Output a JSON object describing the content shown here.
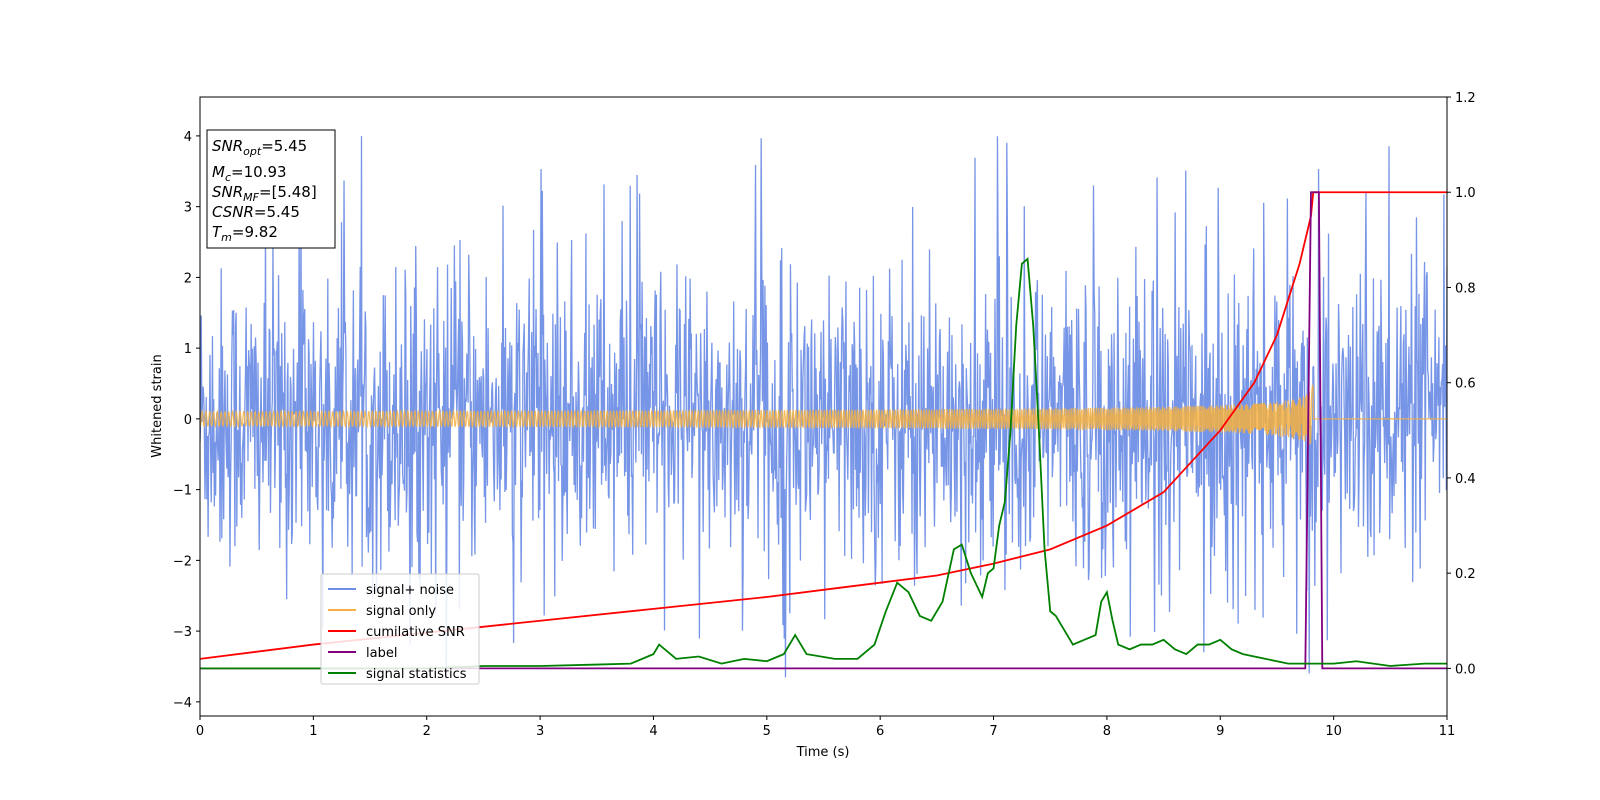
{
  "chart_data": {
    "type": "line",
    "title": "",
    "xlabel": "Time (s)",
    "ylabel": "Whitened strain",
    "ylabel_right": "",
    "xlim": [
      0,
      11
    ],
    "ylim": [
      -4.2,
      4.55
    ],
    "ylim_right": [
      -0.1,
      1.2
    ],
    "x_ticks": [
      "0",
      "1",
      "2",
      "3",
      "4",
      "5",
      "6",
      "7",
      "8",
      "9",
      "10",
      "11"
    ],
    "y_ticks": [
      "−4",
      "−3",
      "−2",
      "−1",
      "0",
      "1",
      "2",
      "3",
      "4"
    ],
    "y_ticks_values": [
      -4,
      -3,
      -2,
      -1,
      0,
      1,
      2,
      3,
      4
    ],
    "y_right_ticks": [
      "0.0",
      "0.2",
      "0.4",
      "0.6",
      "0.8",
      "1.0",
      "1.2"
    ],
    "y_right_ticks_values": [
      0,
      0.2,
      0.4,
      0.6,
      0.8,
      1.0,
      1.2
    ],
    "grid": false,
    "legend_position": "lower-left",
    "annotation_box": {
      "lines": [
        {
          "main": "SNR",
          "sub": "opt",
          "value": "=5.45"
        },
        {
          "main": "M",
          "sub": "c",
          "value": "=10.93"
        },
        {
          "main": "SNR",
          "sub": "MF",
          "value": "=[5.48]"
        },
        {
          "main": "CSNR",
          "sub": "",
          "value": "=5.45"
        },
        {
          "main": "T",
          "sub": "m",
          "value": "=9.82"
        }
      ]
    },
    "series": [
      {
        "name": "signal+ noise",
        "color": "#6f8fe6",
        "axis": "left",
        "kind": "noise",
        "noise_sigma": 1.05,
        "max_peak": 4.18,
        "min_trough": -3.7,
        "sample_count": 2000
      },
      {
        "name": "signal only",
        "color": "#f5b041",
        "axis": "left",
        "kind": "chirp",
        "merger_time": 9.82,
        "peak_amplitude": 0.55
      },
      {
        "name": "cumilative SNR",
        "color": "#ff0000",
        "axis": "right",
        "x": [
          0,
          1,
          2,
          3,
          4,
          5,
          5.5,
          6,
          6.5,
          7,
          7.5,
          8,
          8.5,
          9,
          9.3,
          9.5,
          9.7,
          9.8,
          9.82,
          11
        ],
        "values": [
          0.02,
          0.05,
          0.075,
          0.1,
          0.125,
          0.15,
          0.165,
          0.18,
          0.195,
          0.22,
          0.25,
          0.3,
          0.37,
          0.5,
          0.6,
          0.7,
          0.85,
          0.95,
          1.0,
          1.0
        ]
      },
      {
        "name": "label",
        "color": "#800080",
        "axis": "right",
        "x": [
          0,
          9.75,
          9.8,
          9.87,
          9.9,
          11
        ],
        "values": [
          0,
          0,
          1.0,
          1.0,
          0,
          0
        ]
      },
      {
        "name": "signal statistics",
        "color": "#008000",
        "axis": "right",
        "x": [
          0,
          0.5,
          1.0,
          1.5,
          2.0,
          2.5,
          3.0,
          3.5,
          3.8,
          4.0,
          4.05,
          4.2,
          4.4,
          4.6,
          4.8,
          5.0,
          5.15,
          5.25,
          5.35,
          5.6,
          5.8,
          5.95,
          6.05,
          6.15,
          6.25,
          6.35,
          6.45,
          6.55,
          6.65,
          6.72,
          6.8,
          6.9,
          6.95,
          7.0,
          7.05,
          7.1,
          7.15,
          7.2,
          7.25,
          7.3,
          7.35,
          7.4,
          7.45,
          7.5,
          7.55,
          7.6,
          7.7,
          7.8,
          7.9,
          7.95,
          8.0,
          8.05,
          8.1,
          8.2,
          8.3,
          8.4,
          8.5,
          8.6,
          8.7,
          8.8,
          8.9,
          9.0,
          9.1,
          9.2,
          9.4,
          9.6,
          9.8,
          10.0,
          10.2,
          10.5,
          10.8,
          11.0
        ],
        "values": [
          0.0,
          0.0,
          0.0,
          0.0,
          0.0,
          0.005,
          0.005,
          0.008,
          0.01,
          0.03,
          0.05,
          0.02,
          0.025,
          0.01,
          0.02,
          0.015,
          0.03,
          0.07,
          0.03,
          0.02,
          0.02,
          0.05,
          0.12,
          0.18,
          0.16,
          0.11,
          0.1,
          0.14,
          0.25,
          0.26,
          0.2,
          0.15,
          0.2,
          0.21,
          0.3,
          0.35,
          0.5,
          0.72,
          0.85,
          0.86,
          0.72,
          0.5,
          0.25,
          0.12,
          0.11,
          0.09,
          0.05,
          0.06,
          0.07,
          0.14,
          0.16,
          0.1,
          0.05,
          0.04,
          0.05,
          0.05,
          0.06,
          0.04,
          0.03,
          0.05,
          0.05,
          0.06,
          0.04,
          0.03,
          0.02,
          0.01,
          0.01,
          0.01,
          0.015,
          0.005,
          0.01,
          0.01
        ]
      }
    ]
  }
}
